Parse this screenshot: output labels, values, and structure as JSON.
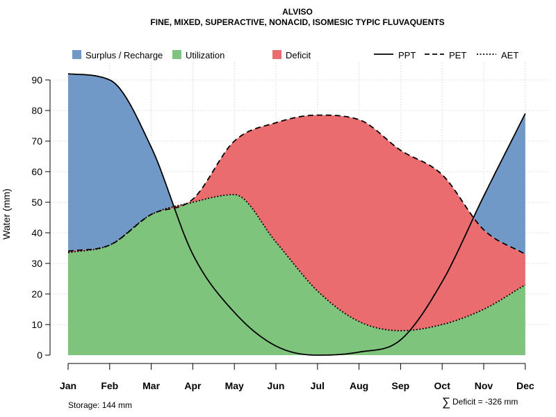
{
  "chart_data": {
    "type": "area",
    "title": "ALVISO",
    "subtitle": "FINE, MIXED, SUPERACTIVE, NONACID, ISOMESIC TYPIC FLUVAQUENTS",
    "xlabel": "",
    "ylabel": "Water (mm)",
    "categories": [
      "Jan",
      "Feb",
      "Mar",
      "Apr",
      "May",
      "Jun",
      "Jul",
      "Aug",
      "Sep",
      "Oct",
      "Nov",
      "Dec"
    ],
    "ylim": [
      0,
      95
    ],
    "yticks": [
      0,
      10,
      20,
      30,
      40,
      50,
      60,
      70,
      80,
      90
    ],
    "grid": true,
    "series": [
      {
        "name": "PPT",
        "style": "solid",
        "values": [
          92,
          90,
          68,
          33,
          14,
          3,
          0,
          1,
          5,
          24,
          52,
          79
        ]
      },
      {
        "name": "PET",
        "style": "dashed",
        "values": [
          34,
          36,
          46,
          51,
          70,
          76,
          78.5,
          77,
          67,
          59,
          41,
          33
        ]
      },
      {
        "name": "AET",
        "style": "dotted",
        "values": [
          33.5,
          36,
          46,
          50,
          52.5,
          37,
          21,
          11,
          8,
          10,
          15,
          23
        ]
      }
    ],
    "areas": [
      {
        "name": "Surplus / Recharge",
        "color": "#7099c8"
      },
      {
        "name": "Utilization",
        "color": "#7fc47c"
      },
      {
        "name": "Deficit",
        "color": "#eb6c6e"
      }
    ],
    "legend_position": "top",
    "annotations": {
      "storage": "Storage: 144 mm",
      "deficit_symbol": "∑",
      "deficit": "Deficit = -326 mm"
    }
  }
}
